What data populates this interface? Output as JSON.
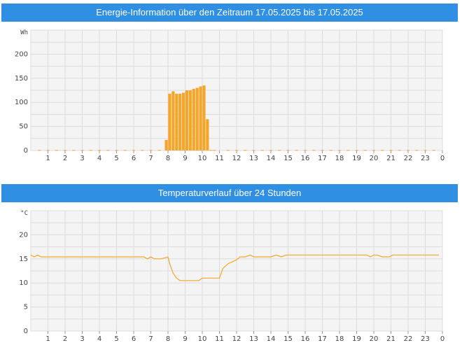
{
  "energy_panel": {
    "title": "Energie-Information über den Zeitraum 17.05.2025 bis 17.05.2025"
  },
  "temperature_panel": {
    "title": "Temperaturverlauf über 24 Stunden"
  },
  "colors": {
    "header": "#2f8fe3",
    "series": "#f5a629",
    "plot_bg": "#f4f4f4",
    "grid": "#dcdcdc"
  },
  "chart_data": [
    {
      "type": "bar",
      "unit": "Wh",
      "ylim": [
        0,
        250
      ],
      "yticks": [
        0,
        50,
        100,
        150,
        200
      ],
      "xticks": [
        "1",
        "2",
        "3",
        "4",
        "5",
        "6",
        "7",
        "8",
        "9",
        "10",
        "11",
        "12",
        "13",
        "14",
        "15",
        "16",
        "17",
        "18",
        "19",
        "20",
        "21",
        "22",
        "23",
        "0"
      ],
      "xlim": [
        0,
        24
      ],
      "grid": true,
      "bar_width_h": 0.17,
      "x": [
        0.5,
        1.0,
        1.5,
        2.0,
        2.5,
        3.0,
        3.5,
        4.0,
        4.5,
        5.0,
        5.5,
        6.0,
        6.5,
        7.0,
        7.5,
        7.9,
        8.1,
        8.3,
        8.5,
        8.7,
        8.9,
        9.1,
        9.3,
        9.5,
        9.7,
        9.9,
        10.1,
        10.3,
        10.5,
        10.7,
        11.5,
        12.0,
        12.5,
        13.0,
        13.5,
        14.0,
        14.5,
        15.0,
        15.5,
        16.0,
        16.5,
        17.0,
        17.5,
        18.0,
        18.5,
        19.0,
        19.5,
        20.0,
        20.5,
        21.0,
        21.5,
        22.0,
        22.5,
        23.0,
        23.5
      ],
      "values": [
        1,
        1,
        1,
        1,
        1,
        1,
        1,
        1,
        1,
        1,
        1,
        1,
        1,
        1,
        1,
        22,
        118,
        123,
        118,
        118,
        120,
        125,
        125,
        128,
        130,
        133,
        135,
        65,
        1,
        1,
        1,
        1,
        1,
        1,
        1,
        1,
        1,
        1,
        1,
        1,
        1,
        1,
        1,
        1,
        1,
        1,
        1,
        1,
        1,
        1,
        1,
        1,
        1,
        1,
        1
      ]
    },
    {
      "type": "line",
      "unit": "°C",
      "ylim": [
        0,
        25
      ],
      "yticks": [
        0,
        5,
        10,
        15,
        20
      ],
      "xticks": [
        "1",
        "2",
        "3",
        "4",
        "5",
        "6",
        "7",
        "8",
        "9",
        "10",
        "11",
        "12",
        "13",
        "14",
        "15",
        "16",
        "17",
        "18",
        "19",
        "20",
        "21",
        "22",
        "23",
        "0"
      ],
      "xlim": [
        0,
        24
      ],
      "grid": true,
      "x": [
        0,
        0.2,
        0.4,
        0.6,
        0.8,
        1,
        6.6,
        6.8,
        7.0,
        7.2,
        7.4,
        7.6,
        8.0,
        8.1,
        8.3,
        8.5,
        8.7,
        9.0,
        9.8,
        10.0,
        11.0,
        11.2,
        11.5,
        12.0,
        12.2,
        12.5,
        12.8,
        13.0,
        13.2,
        13.5,
        14.0,
        14.3,
        14.6,
        14.9,
        19.6,
        19.8,
        20.0,
        20.2,
        20.5,
        20.9,
        21.1,
        23.8
      ],
      "values": [
        15.8,
        15.4,
        15.8,
        15.4,
        15.4,
        15.4,
        15.4,
        15.0,
        15.4,
        15.0,
        15.0,
        15.0,
        15.4,
        14.0,
        12.0,
        11.0,
        10.5,
        10.5,
        10.5,
        11.0,
        11.0,
        13.0,
        14.0,
        14.8,
        15.4,
        15.4,
        15.8,
        15.4,
        15.4,
        15.4,
        15.4,
        15.8,
        15.4,
        15.8,
        15.8,
        15.4,
        15.8,
        15.8,
        15.4,
        15.4,
        15.8,
        15.8
      ]
    }
  ]
}
